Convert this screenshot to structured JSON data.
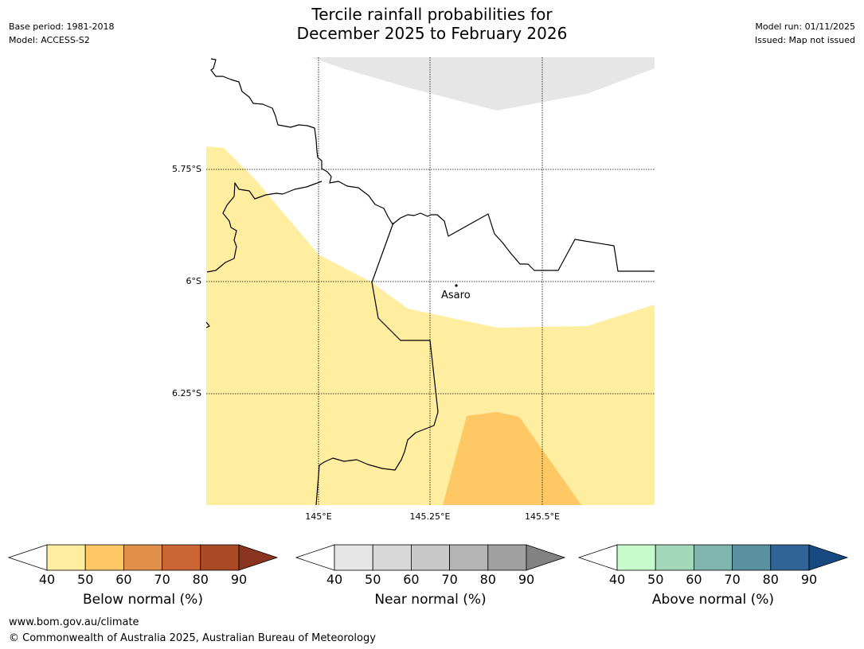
{
  "header": {
    "title_line1": "Tercile rainfall probabilities for",
    "title_line2": "December 2025 to February 2026",
    "base_period": "Base period: 1981-2018",
    "model": "Model: ACCESS-S2",
    "model_run": "Model run: 01/11/2025",
    "issued": "Issued: Map not issued"
  },
  "map": {
    "lat_labels": [
      "5.75°S",
      "6°S",
      "6.25°S"
    ],
    "lon_labels": [
      "145°E",
      "145.25°E",
      "145.5°E"
    ],
    "place": "Asaro"
  },
  "colorbars": [
    {
      "label": "Below normal (%)",
      "ticks": [
        "40",
        "50",
        "60",
        "70",
        "80",
        "90"
      ],
      "colors": [
        "#ffeda0",
        "#fec865",
        "#e0904a",
        "#cb6634",
        "#ab4a27"
      ],
      "extend_color": "#8b3420"
    },
    {
      "label": "Near normal (%)",
      "ticks": [
        "40",
        "50",
        "60",
        "70",
        "80",
        "90"
      ],
      "colors": [
        "#e6e6e6",
        "#d8d8d8",
        "#c8c8c8",
        "#b4b4b4",
        "#a0a0a0"
      ],
      "extend_color": "#828282"
    },
    {
      "label": "Above normal (%)",
      "ticks": [
        "40",
        "50",
        "60",
        "70",
        "80",
        "90"
      ],
      "colors": [
        "#c8fbcb",
        "#a3d9ba",
        "#80b6ae",
        "#5a91a0",
        "#306494"
      ],
      "extend_color": "#174a80"
    }
  ],
  "footer": {
    "url": "www.bom.gov.au/climate",
    "copyright": "© Commonwealth of Australia 2025, Australian Bureau of Meteorology"
  }
}
